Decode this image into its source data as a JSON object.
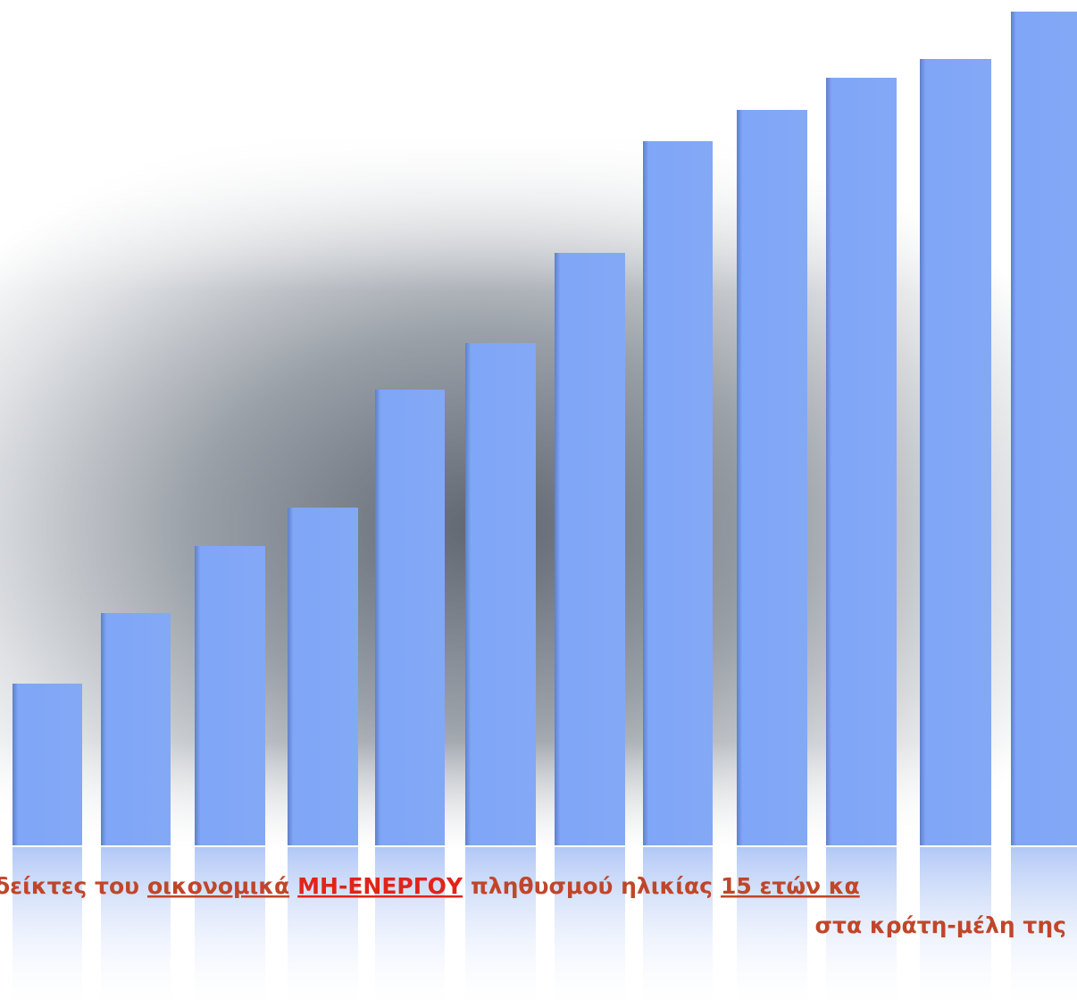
{
  "caption": {
    "line1": [
      "δείκτες του",
      "οικονομικά",
      "ΜΗ-ΕΝΕΡΓΟΥ",
      "πληθυσμού ηλικίας",
      "15 ετών κα"
    ],
    "line2": "στα κράτη-μέλη της"
  }
}
